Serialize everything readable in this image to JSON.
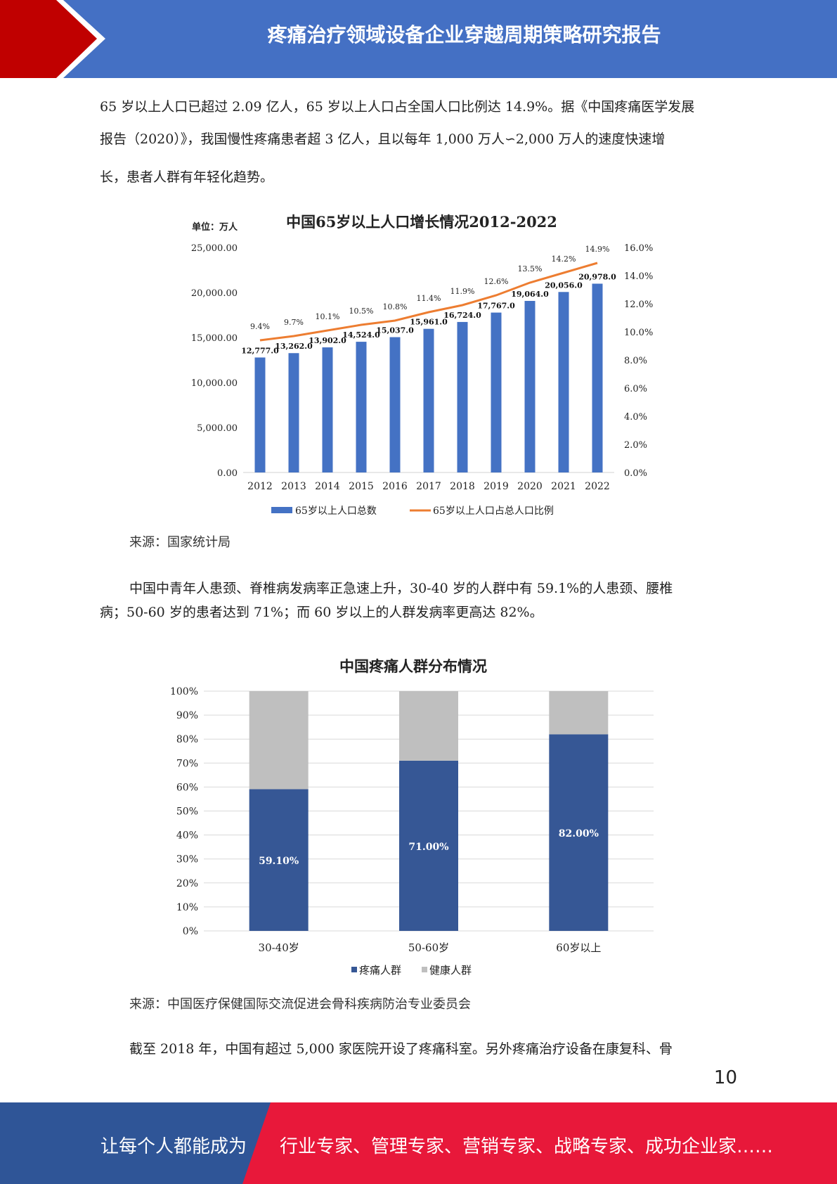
{
  "header": {
    "title": "疼痛治疗领域设备企业穿越周期策略研究报告"
  },
  "paragraphs": {
    "p1_line1": "65 岁以上人口已超过 2.09 亿人，65 岁以上人口占全国人口比例达 14.9%。据《中国疼痛医学发展",
    "p1_line2": "报告（2020）》，我国慢性疼痛患者超 3 亿人，且以每年 1,000 万人∽2,000 万人的速度快速增",
    "p1_line3": "长，患者人群有年轻化趋势。",
    "p2_line1": "中国中青年人患颈、脊椎病发病率正急速上升，30-40 岁的人群中有 59.1%的人患颈、腰椎",
    "p2_line2": "病；50-60 岁的患者达到 71%；而 60 岁以上的人群发病率更高达 82%。",
    "p3_line1": "截至 2018 年，中国有超过 5,000 家医院开设了疼痛科室。另外疼痛治疗设备在康复科、骨"
  },
  "sources": {
    "s1": "来源：国家统计局",
    "s2": "来源：中国医疗保健国际交流促进会骨科疾病防治专业委员会"
  },
  "chart_data": [
    {
      "type": "bar",
      "title": "中国65岁以上人口增长情况2012-2022",
      "unit_label": "单位：万人",
      "categories": [
        "2012",
        "2013",
        "2014",
        "2015",
        "2016",
        "2017",
        "2018",
        "2019",
        "2020",
        "2021",
        "2022"
      ],
      "series": [
        {
          "name": "65岁以上人口总数",
          "type": "bar",
          "axis": "left",
          "values": [
            12777.0,
            13262.0,
            13902.0,
            14524.0,
            15037.0,
            15961.0,
            16724.0,
            17767.0,
            19064.0,
            20056.0,
            20978.0
          ],
          "labels": [
            "12,777.0",
            "13,262.0",
            "13,902.0",
            "14,524.0",
            "15,037.0",
            "15,961.0",
            "16,724.0",
            "17,767.0",
            "19,064.0",
            "20,056.0",
            "20,978.0"
          ]
        },
        {
          "name": "65岁以上人口占总人口比例",
          "type": "line",
          "axis": "right",
          "values": [
            9.4,
            9.7,
            10.1,
            10.5,
            10.8,
            11.4,
            11.9,
            12.6,
            13.5,
            14.2,
            14.9
          ],
          "labels": [
            "9.4%",
            "9.7%",
            "10.1%",
            "10.5%",
            "10.8%",
            "11.4%",
            "11.9%",
            "12.6%",
            "13.5%",
            "14.2%",
            "14.9%"
          ]
        }
      ],
      "ylim": [
        0,
        25000
      ],
      "y_ticks": [
        "0.00",
        "5,000.00",
        "10,000.00",
        "15,000.00",
        "20,000.00",
        "25,000.00"
      ],
      "y2lim": [
        0,
        16
      ],
      "y2_ticks": [
        "0.0%",
        "2.0%",
        "4.0%",
        "6.0%",
        "8.0%",
        "10.0%",
        "12.0%",
        "14.0%",
        "16.0%"
      ],
      "legend_position": "bottom",
      "colors": {
        "bar": "#4472c4",
        "line": "#ed7d31"
      }
    },
    {
      "type": "bar",
      "stacked": true,
      "title": "中国疼痛人群分布情况",
      "categories": [
        "30-40岁",
        "50-60岁",
        "60岁以上"
      ],
      "series": [
        {
          "name": "疼痛人群",
          "values": [
            59.1,
            71.0,
            82.0
          ],
          "labels": [
            "59.10%",
            "71.00%",
            "82.00%"
          ]
        },
        {
          "name": "健康人群",
          "values": [
            40.9,
            29.0,
            18.0
          ]
        }
      ],
      "ylim": [
        0,
        100
      ],
      "y_ticks": [
        "0%",
        "10%",
        "20%",
        "30%",
        "40%",
        "50%",
        "60%",
        "70%",
        "80%",
        "90%",
        "100%"
      ],
      "legend_position": "bottom",
      "grid": true,
      "colors": {
        "pain": "#365795",
        "healthy": "#bfbfbf"
      }
    }
  ],
  "page_number": "10",
  "footer": {
    "left": "让每个人都能成为",
    "right": "行业专家、管理专家、营销专家、战略专家、成功企业家……",
    "colors": {
      "left": "#2f5597",
      "right": "#e8183a"
    }
  }
}
